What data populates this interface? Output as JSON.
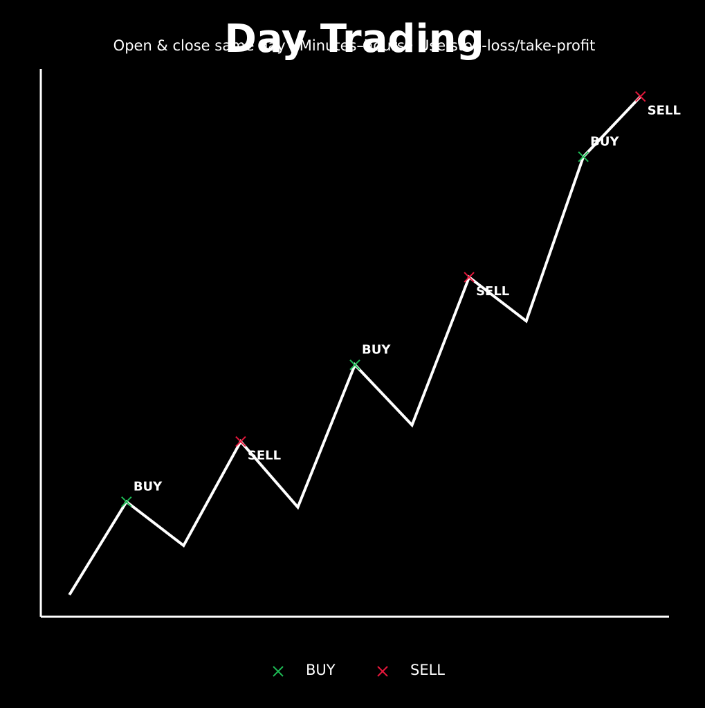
{
  "chart_data": {
    "type": "line",
    "title": "Day Trading",
    "subtitle": "Open & close same day · Minutes–hours · Use stop-loss/take-profit",
    "line": {
      "color": "#ffffff",
      "x": [
        0,
        1,
        2,
        3,
        4,
        5,
        6,
        7,
        8,
        9,
        10
      ],
      "values": [
        4,
        21,
        13,
        32,
        20,
        46,
        35,
        62,
        54,
        84,
        95
      ]
    },
    "series": [
      {
        "name": "BUY",
        "color": "#1db954",
        "x": [
          1,
          5,
          9
        ],
        "values": [
          21,
          46,
          84
        ]
      },
      {
        "name": "SELL",
        "color": "#e8173c",
        "x": [
          3,
          7,
          10
        ],
        "values": [
          32,
          62,
          95
        ]
      }
    ],
    "xlim": [
      -0.5,
      10.5
    ],
    "ylim": [
      0,
      100
    ]
  }
}
